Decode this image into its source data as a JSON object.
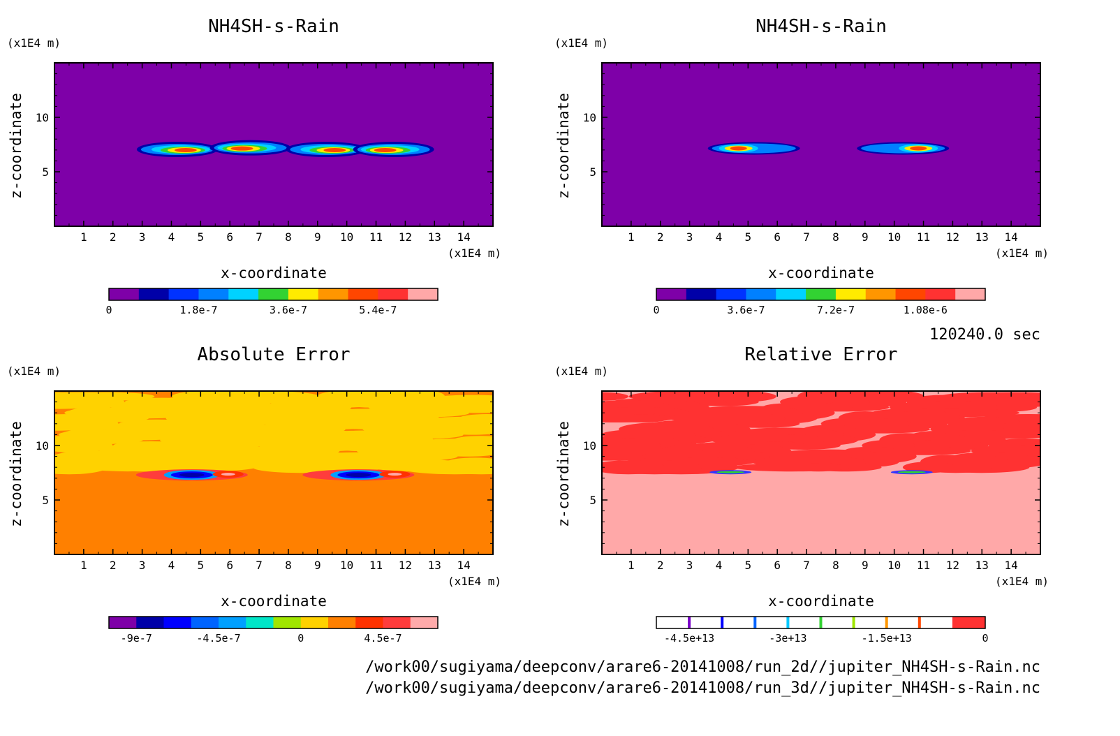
{
  "time_label": "120240.0 sec",
  "footer_paths": [
    "/work00/sugiyama/deepconv/arare6-20141008/run_2d//jupiter_NH4SH-s-Rain.nc",
    "/work00/sugiyama/deepconv/arare6-20141008/run_3d//jupiter_NH4SH-s-Rain.nc"
  ],
  "chart_data": [
    {
      "type": "heatmap",
      "title": "NH4SH-s-Rain",
      "xlabel": "x-coordinate",
      "ylabel": "z-coordinate",
      "x_unit": "(x1E4 m)",
      "y_unit": "(x1E4 m)",
      "xlim": [
        0,
        15
      ],
      "ylim": [
        0,
        15
      ],
      "xticks": [
        "1",
        "2",
        "3",
        "4",
        "5",
        "6",
        "7",
        "8",
        "9",
        "10",
        "11",
        "12",
        "13",
        "14"
      ],
      "yticks": [
        "5",
        "10"
      ],
      "background_color": "#7e00a8",
      "colorbar": {
        "colors": [
          "#7e00a8",
          "#0000a8",
          "#0032ff",
          "#0080ff",
          "#00d2ff",
          "#32d232",
          "#ffeb00",
          "#ff9600",
          "#ff4600",
          "#ff3232",
          "#ffa8a8"
        ],
        "tick_labels": [
          "0",
          "1.8e-7",
          "3.6e-7",
          "5.4e-7"
        ]
      }
    },
    {
      "type": "heatmap",
      "title": "NH4SH-s-Rain",
      "xlabel": "x-coordinate",
      "ylabel": "z-coordinate",
      "x_unit": "(x1E4 m)",
      "y_unit": "(x1E4 m)",
      "xlim": [
        0,
        15
      ],
      "ylim": [
        0,
        15
      ],
      "xticks": [
        "1",
        "2",
        "3",
        "4",
        "5",
        "6",
        "7",
        "8",
        "9",
        "10",
        "11",
        "12",
        "13",
        "14"
      ],
      "yticks": [
        "5",
        "10"
      ],
      "background_color": "#7e00a8",
      "colorbar": {
        "colors": [
          "#7e00a8",
          "#0000a8",
          "#0032ff",
          "#0080ff",
          "#00d2ff",
          "#32d232",
          "#ffeb00",
          "#ff9600",
          "#ff4600",
          "#ff3232",
          "#ffa8a8"
        ],
        "tick_labels": [
          "0",
          "3.6e-7",
          "7.2e-7",
          "1.08e-6"
        ]
      }
    },
    {
      "type": "heatmap",
      "title": "Absolute Error",
      "xlabel": "x-coordinate",
      "ylabel": "z-coordinate",
      "x_unit": "(x1E4 m)",
      "y_unit": "(x1E4 m)",
      "xlim": [
        0,
        15
      ],
      "ylim": [
        0,
        15
      ],
      "xticks": [
        "1",
        "2",
        "3",
        "4",
        "5",
        "6",
        "7",
        "8",
        "9",
        "10",
        "11",
        "12",
        "13",
        "14"
      ],
      "yticks": [
        "5",
        "10"
      ],
      "background_color": "#ff8000",
      "colorbar": {
        "colors": [
          "#7e00a8",
          "#0000a8",
          "#0000ff",
          "#0064ff",
          "#00a0ff",
          "#00e6c8",
          "#a0e600",
          "#ffd200",
          "#ff8000",
          "#ff3200",
          "#ff3c3c",
          "#ffaaaa"
        ],
        "tick_labels": [
          "-9e-7",
          "-4.5e-7",
          "0",
          "4.5e-7"
        ]
      }
    },
    {
      "type": "heatmap",
      "title": "Relative Error",
      "xlabel": "x-coordinate",
      "ylabel": "z-coordinate",
      "x_unit": "(x1E4 m)",
      "y_unit": "(x1E4 m)",
      "xlim": [
        0,
        15
      ],
      "ylim": [
        0,
        15
      ],
      "xticks": [
        "1",
        "2",
        "3",
        "4",
        "5",
        "6",
        "7",
        "8",
        "9",
        "10",
        "11",
        "12",
        "13",
        "14"
      ],
      "yticks": [
        "5",
        "10"
      ],
      "background_color": "#ffa8a8",
      "colorbar": {
        "colors": [
          "#ffffff",
          "#ffffff",
          "#ffffff",
          "#ffffff",
          "#ffffff",
          "#ffffff",
          "#ffffff",
          "#ffffff",
          "#ffffff",
          "#ff3232"
        ],
        "dividers": [
          "#7800c8",
          "#0000ff",
          "#0064ff",
          "#00c8ff",
          "#32d232",
          "#a0e600",
          "#ff9600",
          "#ff4600"
        ],
        "tick_labels": [
          "-4.5e+13",
          "-3e+13",
          "-1.5e+13",
          "0"
        ]
      }
    }
  ]
}
